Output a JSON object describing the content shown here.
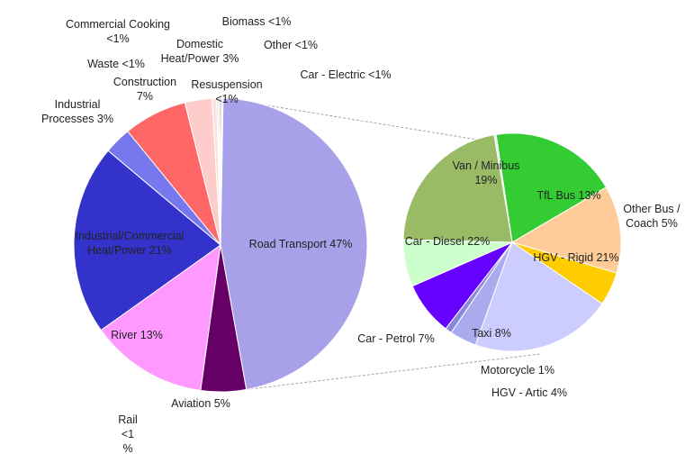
{
  "chart_data": [
    {
      "type": "pie",
      "name": "main",
      "title": "",
      "slices": [
        {
          "label": "Road Transport 47%",
          "value": 47,
          "color": "#a8a0e8"
        },
        {
          "label": "Aviation 5%",
          "value": 5,
          "color": "#660066"
        },
        {
          "label": "River 13%",
          "value": 13,
          "color": "#ff99ff"
        },
        {
          "label": "Industrial/Commercial Heat/Power 21%",
          "value": 21,
          "color": "#3333cc"
        },
        {
          "label": "Industrial Processes 3%",
          "value": 3,
          "color": "#7777ee"
        },
        {
          "label": "Construction 7%",
          "value": 7,
          "color": "#ff6666"
        },
        {
          "label": "Domestic Heat/Power 3%",
          "value": 3,
          "color": "#ffcccc"
        },
        {
          "label": "Resuspension <1%",
          "value": 0.5,
          "color": "#ffe0e0"
        },
        {
          "label": "Waste <1%",
          "value": 0.15,
          "color": "#cccccc"
        },
        {
          "label": "Commercial Cooking <1%",
          "value": 0.15,
          "color": "#bbbbbb"
        },
        {
          "label": "Biomass <1%",
          "value": 0.15,
          "color": "#999999"
        },
        {
          "label": "Other <1%",
          "value": 0.15,
          "color": "#888888"
        },
        {
          "label": "Rail <1 %",
          "value": 0.1,
          "color": "#777777"
        }
      ]
    },
    {
      "type": "pie",
      "name": "road-transport-breakdown",
      "title": "",
      "slices": [
        {
          "label": "Van / Minibus 19%",
          "value": 19,
          "color": "#33cc33"
        },
        {
          "label": "TfL Bus 13%",
          "value": 13,
          "color": "#ffcc99"
        },
        {
          "label": "Other Bus / Coach 5%",
          "value": 5,
          "color": "#ffcc00"
        },
        {
          "label": "HGV - Rigid 21%",
          "value": 21,
          "color": "#ccccff"
        },
        {
          "label": "HGV - Artic 4%",
          "value": 4,
          "color": "#aaaaee"
        },
        {
          "label": "Motorcycle 1%",
          "value": 1,
          "color": "#8888dd"
        },
        {
          "label": "Taxi 8%",
          "value": 8,
          "color": "#6600ff"
        },
        {
          "label": "Car - Petrol 7%",
          "value": 7,
          "color": "#ccffcc"
        },
        {
          "label": "Car - Diesel 22%",
          "value": 22,
          "color": "#99bb66"
        },
        {
          "label": "Car - Electric <1%",
          "value": 0.3,
          "color": "#eeeeee"
        }
      ]
    }
  ],
  "labels": {
    "commercial_cooking": [
      "Commercial Cooking",
      "<1%"
    ],
    "biomass": [
      "Biomass <1%"
    ],
    "domestic": [
      "Domestic",
      "Heat/Power 3%"
    ],
    "other": [
      "Other <1%"
    ],
    "waste": [
      "Waste <1%"
    ],
    "construction": [
      "Construction",
      "7%"
    ],
    "car_electric": [
      "Car - Electric <1%"
    ],
    "resuspension": [
      "Resuspension",
      "<1%"
    ],
    "industrial_processes": [
      "Industrial",
      "Processes 3%"
    ],
    "industrial_commercial": [
      "Industrial/Commercial",
      "Heat/Power 21%"
    ],
    "road_transport": [
      "Road Transport 47%"
    ],
    "river": [
      "River 13%"
    ],
    "aviation": [
      "Aviation 5%"
    ],
    "rail": [
      "Rail",
      "<1",
      "%"
    ],
    "van": [
      "Van / Minibus",
      "19%"
    ],
    "tfl_bus": [
      "TfL Bus 13%"
    ],
    "other_bus": [
      "Other Bus /",
      "Coach 5%"
    ],
    "car_diesel": [
      "Car - Diesel 22%"
    ],
    "hgv_rigid": [
      "HGV - Rigid 21%"
    ],
    "car_petrol": [
      "Car - Petrol 7%"
    ],
    "taxi": [
      "Taxi 8%"
    ],
    "motorcycle": [
      "Motorcycle 1%"
    ],
    "hgv_artic": [
      "HGV - Artic 4%"
    ]
  }
}
